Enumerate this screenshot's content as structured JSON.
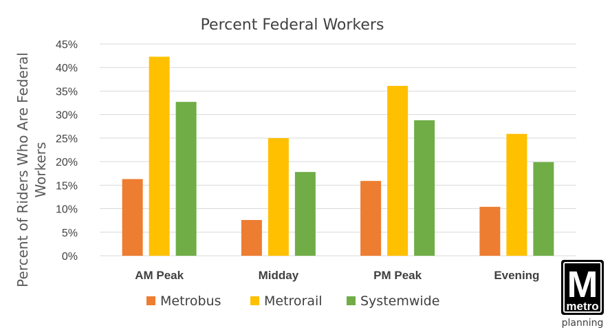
{
  "chart_data": {
    "type": "bar",
    "title": "Percent Federal Workers",
    "xlabel": "",
    "ylabel": "Percent of Riders Who Are Federal Workers",
    "ylabel_lines": [
      "Percent of Riders Who Are Federal",
      "Workers"
    ],
    "categories": [
      "AM Peak",
      "Midday",
      "PM Peak",
      "Evening"
    ],
    "series": [
      {
        "name": "Metrobus",
        "color": "#ED7D31",
        "values": [
          16.3,
          7.6,
          15.9,
          10.4
        ]
      },
      {
        "name": "Metrorail",
        "color": "#FFC000",
        "values": [
          42.3,
          25.0,
          36.1,
          25.9
        ]
      },
      {
        "name": "Systemwide",
        "color": "#70AD47",
        "values": [
          32.7,
          17.8,
          28.8,
          19.9
        ]
      }
    ],
    "ylim": [
      0,
      45
    ],
    "yticks": [
      0,
      5,
      10,
      15,
      20,
      25,
      30,
      35,
      40,
      45
    ],
    "ytick_format": "percent",
    "grid": true,
    "legend_position": "bottom"
  },
  "logo": {
    "mark": "M",
    "wordmark": "metro",
    "caption": "planning"
  }
}
